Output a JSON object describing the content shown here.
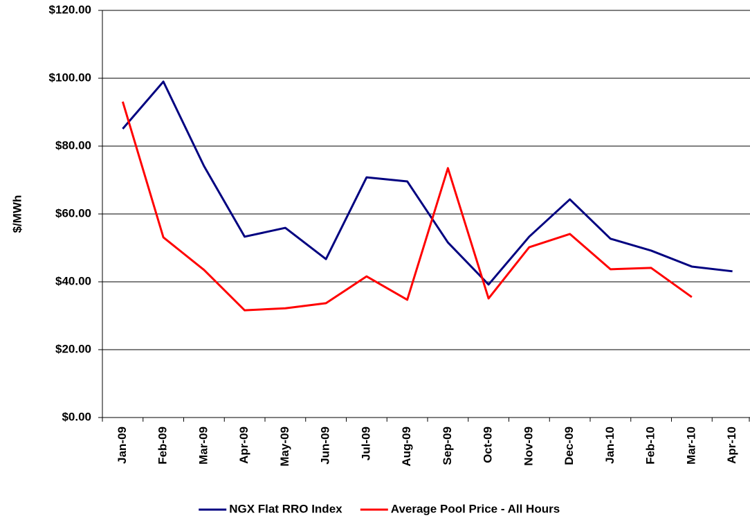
{
  "chart_data": {
    "type": "line",
    "y_label": "$/MWh",
    "categories": [
      "Jan-09",
      "Feb-09",
      "Mar-09",
      "Apr-09",
      "May-09",
      "Jun-09",
      "Jul-09",
      "Aug-09",
      "Sep-09",
      "Oct-09",
      "Nov-09",
      "Dec-09",
      "Jan-10",
      "Feb-10",
      "Mar-10",
      "Apr-10"
    ],
    "series": [
      {
        "name": "NGX Flat RRO Index",
        "color": "#000080",
        "values": [
          85.1,
          99.0,
          74.1,
          53.3,
          55.9,
          46.7,
          70.8,
          69.6,
          51.6,
          39.2,
          53.3,
          64.3,
          52.7,
          49.2,
          44.5,
          43.1
        ]
      },
      {
        "name": "Average Pool Price - All Hours",
        "color": "#ff0000",
        "values": [
          93.1,
          53.1,
          43.5,
          31.6,
          32.2,
          33.7,
          41.6,
          34.7,
          73.5,
          35.1,
          50.2,
          54.1,
          43.7,
          44.1,
          35.5,
          null
        ]
      }
    ],
    "ylim": [
      0,
      120
    ],
    "yticks": [
      {
        "value": 0,
        "label": "$0.00"
      },
      {
        "value": 20,
        "label": "$20.00"
      },
      {
        "value": 40,
        "label": "$40.00"
      },
      {
        "value": 60,
        "label": "$60.00"
      },
      {
        "value": 80,
        "label": "$80.00"
      },
      {
        "value": 100,
        "label": "$100.00"
      },
      {
        "value": 120,
        "label": "$120.00"
      }
    ],
    "grid": true,
    "legend": "bottom"
  }
}
